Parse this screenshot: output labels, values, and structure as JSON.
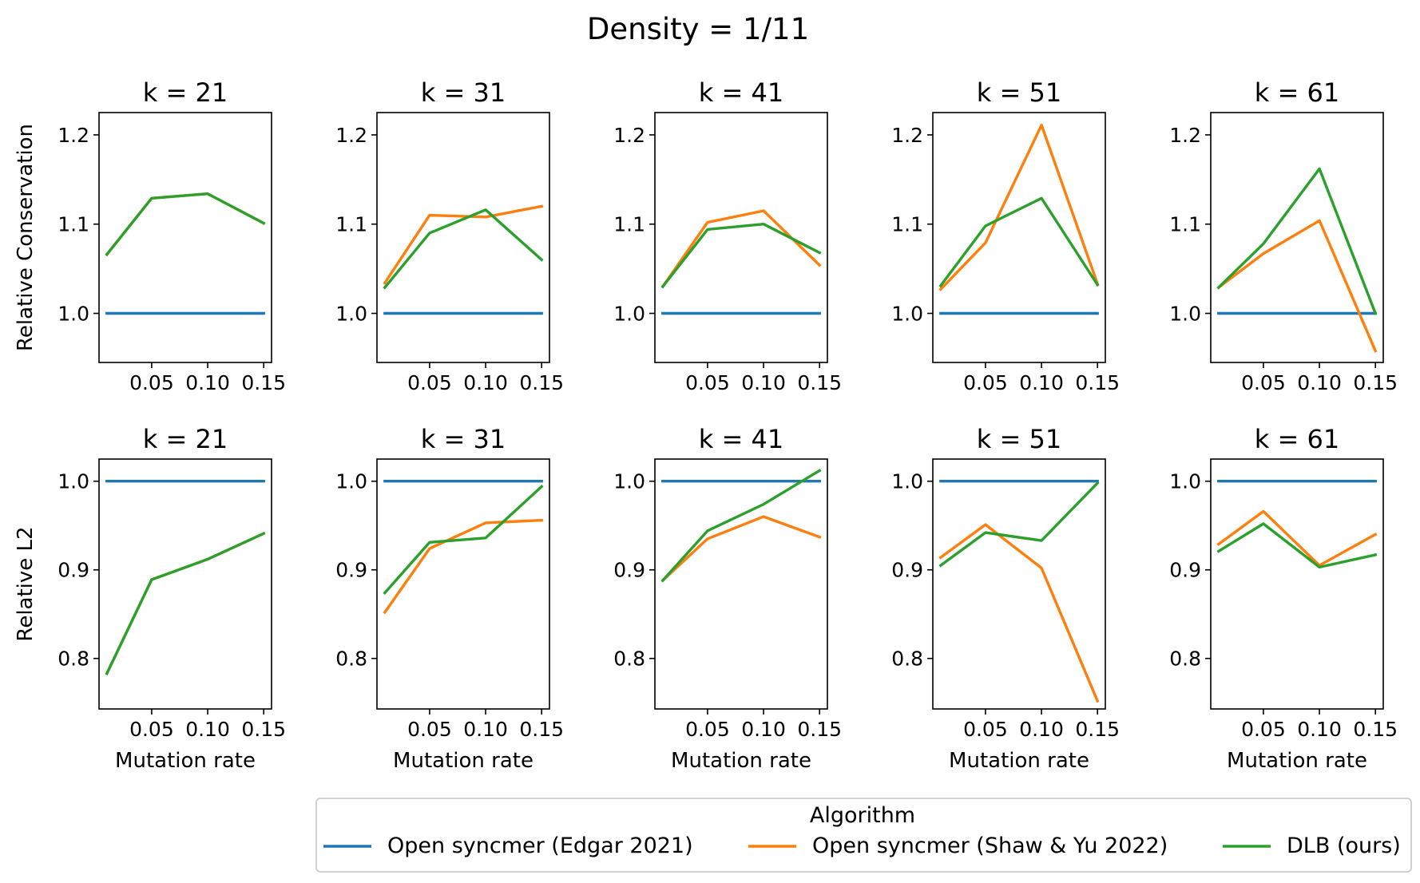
{
  "figure": {
    "title": "Density = 1/11",
    "legend_title": "Algorithm"
  },
  "series_styles": [
    {
      "name": "Open syncmer (Edgar 2021)",
      "color": "#1f77b4"
    },
    {
      "name": "Open syncmer (Shaw & Yu 2022)",
      "color": "#ff7f0e"
    },
    {
      "name": "DLB (ours)",
      "color": "#2ca02c"
    }
  ],
  "chart_data": [
    {
      "type": "line",
      "row": 0,
      "col": 0,
      "title": "k = 21",
      "ylabel": "Relative Conservation",
      "xlabel": "",
      "x": [
        0.01,
        0.05,
        0.1,
        0.15
      ],
      "xticks": [
        0.05,
        0.1,
        0.15
      ],
      "xticklabels": [
        "0.05",
        "0.10",
        "0.15"
      ],
      "ylim": [
        0.945,
        1.225
      ],
      "yticks": [
        1.0,
        1.1,
        1.2
      ],
      "yticklabels": [
        "1.0",
        "1.1",
        "1.2"
      ],
      "series": [
        {
          "name": "Open syncmer (Edgar 2021)",
          "values": [
            1.0,
            1.0,
            1.0,
            1.0
          ]
        },
        {
          "name": "Open syncmer (Shaw & Yu 2022)",
          "values": [
            1.066,
            1.129,
            1.134,
            1.101
          ]
        },
        {
          "name": "DLB (ours)",
          "values": [
            1.066,
            1.129,
            1.134,
            1.101
          ]
        }
      ]
    },
    {
      "type": "line",
      "row": 0,
      "col": 1,
      "title": "k = 31",
      "ylabel": "",
      "xlabel": "",
      "x": [
        0.01,
        0.05,
        0.1,
        0.15
      ],
      "xticks": [
        0.05,
        0.1,
        0.15
      ],
      "xticklabels": [
        "0.05",
        "0.10",
        "0.15"
      ],
      "ylim": [
        0.945,
        1.225
      ],
      "yticks": [
        1.0,
        1.1,
        1.2
      ],
      "yticklabels": [
        "1.0",
        "1.1",
        "1.2"
      ],
      "series": [
        {
          "name": "Open syncmer (Edgar 2021)",
          "values": [
            1.0,
            1.0,
            1.0,
            1.0
          ]
        },
        {
          "name": "Open syncmer (Shaw & Yu 2022)",
          "values": [
            1.034,
            1.11,
            1.108,
            1.12
          ]
        },
        {
          "name": "DLB (ours)",
          "values": [
            1.029,
            1.09,
            1.116,
            1.06
          ]
        }
      ]
    },
    {
      "type": "line",
      "row": 0,
      "col": 2,
      "title": "k = 41",
      "ylabel": "",
      "xlabel": "",
      "x": [
        0.01,
        0.05,
        0.1,
        0.15
      ],
      "xticks": [
        0.05,
        0.1,
        0.15
      ],
      "xticklabels": [
        "0.05",
        "0.10",
        "0.15"
      ],
      "ylim": [
        0.945,
        1.225
      ],
      "yticks": [
        1.0,
        1.1,
        1.2
      ],
      "yticklabels": [
        "1.0",
        "1.1",
        "1.2"
      ],
      "series": [
        {
          "name": "Open syncmer (Edgar 2021)",
          "values": [
            1.0,
            1.0,
            1.0,
            1.0
          ]
        },
        {
          "name": "Open syncmer (Shaw & Yu 2022)",
          "values": [
            1.03,
            1.102,
            1.115,
            1.054
          ]
        },
        {
          "name": "DLB (ours)",
          "values": [
            1.03,
            1.094,
            1.1,
            1.068
          ]
        }
      ]
    },
    {
      "type": "line",
      "row": 0,
      "col": 3,
      "title": "k = 51",
      "ylabel": "",
      "xlabel": "",
      "x": [
        0.01,
        0.05,
        0.1,
        0.15
      ],
      "xticks": [
        0.05,
        0.1,
        0.15
      ],
      "xticklabels": [
        "0.05",
        "0.10",
        "0.15"
      ],
      "ylim": [
        0.945,
        1.225
      ],
      "yticks": [
        1.0,
        1.1,
        1.2
      ],
      "yticklabels": [
        "1.0",
        "1.1",
        "1.2"
      ],
      "series": [
        {
          "name": "Open syncmer (Edgar 2021)",
          "values": [
            1.0,
            1.0,
            1.0,
            1.0
          ]
        },
        {
          "name": "Open syncmer (Shaw & Yu 2022)",
          "values": [
            1.027,
            1.079,
            1.211,
            1.033
          ]
        },
        {
          "name": "DLB (ours)",
          "values": [
            1.031,
            1.098,
            1.129,
            1.032
          ]
        }
      ]
    },
    {
      "type": "line",
      "row": 0,
      "col": 4,
      "title": "k = 61",
      "ylabel": "",
      "xlabel": "",
      "x": [
        0.01,
        0.05,
        0.1,
        0.15
      ],
      "xticks": [
        0.05,
        0.1,
        0.15
      ],
      "xticklabels": [
        "0.05",
        "0.10",
        "0.15"
      ],
      "ylim": [
        0.945,
        1.225
      ],
      "yticks": [
        1.0,
        1.1,
        1.2
      ],
      "yticklabels": [
        "1.0",
        "1.1",
        "1.2"
      ],
      "series": [
        {
          "name": "Open syncmer (Edgar 2021)",
          "values": [
            1.0,
            1.0,
            1.0,
            1.0
          ]
        },
        {
          "name": "Open syncmer (Shaw & Yu 2022)",
          "values": [
            1.029,
            1.067,
            1.104,
            0.958
          ]
        },
        {
          "name": "DLB (ours)",
          "values": [
            1.029,
            1.078,
            1.162,
            1.0
          ]
        }
      ]
    },
    {
      "type": "line",
      "row": 1,
      "col": 0,
      "title": "k = 21",
      "ylabel": "Relative L2",
      "xlabel": "Mutation rate",
      "x": [
        0.01,
        0.05,
        0.1,
        0.15
      ],
      "xticks": [
        0.05,
        0.1,
        0.15
      ],
      "xticklabels": [
        "0.05",
        "0.10",
        "0.15"
      ],
      "ylim": [
        0.743,
        1.025
      ],
      "yticks": [
        0.8,
        0.9,
        1.0
      ],
      "yticklabels": [
        "0.8",
        "0.9",
        "1.0"
      ],
      "series": [
        {
          "name": "Open syncmer (Edgar 2021)",
          "values": [
            1.0,
            1.0,
            1.0,
            1.0
          ]
        },
        {
          "name": "Open syncmer (Shaw & Yu 2022)",
          "values": [
            0.783,
            0.889,
            0.912,
            0.941
          ]
        },
        {
          "name": "DLB (ours)",
          "values": [
            0.783,
            0.889,
            0.912,
            0.941
          ]
        }
      ]
    },
    {
      "type": "line",
      "row": 1,
      "col": 1,
      "title": "k = 31",
      "ylabel": "",
      "xlabel": "Mutation rate",
      "x": [
        0.01,
        0.05,
        0.1,
        0.15
      ],
      "xticks": [
        0.05,
        0.1,
        0.15
      ],
      "xticklabels": [
        "0.05",
        "0.10",
        "0.15"
      ],
      "ylim": [
        0.743,
        1.025
      ],
      "yticks": [
        0.8,
        0.9,
        1.0
      ],
      "yticklabels": [
        "0.8",
        "0.9",
        "1.0"
      ],
      "series": [
        {
          "name": "Open syncmer (Edgar 2021)",
          "values": [
            1.0,
            1.0,
            1.0,
            1.0
          ]
        },
        {
          "name": "Open syncmer (Shaw & Yu 2022)",
          "values": [
            0.852,
            0.924,
            0.953,
            0.956
          ]
        },
        {
          "name": "DLB (ours)",
          "values": [
            0.874,
            0.931,
            0.936,
            0.994
          ]
        }
      ]
    },
    {
      "type": "line",
      "row": 1,
      "col": 2,
      "title": "k = 41",
      "ylabel": "",
      "xlabel": "Mutation rate",
      "x": [
        0.01,
        0.05,
        0.1,
        0.15
      ],
      "xticks": [
        0.05,
        0.1,
        0.15
      ],
      "xticklabels": [
        "0.05",
        "0.10",
        "0.15"
      ],
      "ylim": [
        0.743,
        1.025
      ],
      "yticks": [
        0.8,
        0.9,
        1.0
      ],
      "yticklabels": [
        "0.8",
        "0.9",
        "1.0"
      ],
      "series": [
        {
          "name": "Open syncmer (Edgar 2021)",
          "values": [
            1.0,
            1.0,
            1.0,
            1.0
          ]
        },
        {
          "name": "Open syncmer (Shaw & Yu 2022)",
          "values": [
            0.888,
            0.935,
            0.96,
            0.937
          ]
        },
        {
          "name": "DLB (ours)",
          "values": [
            0.888,
            0.944,
            0.974,
            1.012
          ]
        }
      ]
    },
    {
      "type": "line",
      "row": 1,
      "col": 3,
      "title": "k = 51",
      "ylabel": "",
      "xlabel": "Mutation rate",
      "x": [
        0.01,
        0.05,
        0.1,
        0.15
      ],
      "xticks": [
        0.05,
        0.1,
        0.15
      ],
      "xticklabels": [
        "0.05",
        "0.10",
        "0.15"
      ],
      "ylim": [
        0.743,
        1.025
      ],
      "yticks": [
        0.8,
        0.9,
        1.0
      ],
      "yticklabels": [
        "0.8",
        "0.9",
        "1.0"
      ],
      "series": [
        {
          "name": "Open syncmer (Edgar 2021)",
          "values": [
            1.0,
            1.0,
            1.0,
            1.0
          ]
        },
        {
          "name": "Open syncmer (Shaw & Yu 2022)",
          "values": [
            0.914,
            0.951,
            0.902,
            0.752
          ]
        },
        {
          "name": "DLB (ours)",
          "values": [
            0.905,
            0.942,
            0.933,
            0.998
          ]
        }
      ]
    },
    {
      "type": "line",
      "row": 1,
      "col": 4,
      "title": "k = 61",
      "ylabel": "",
      "xlabel": "Mutation rate",
      "x": [
        0.01,
        0.05,
        0.1,
        0.15
      ],
      "xticks": [
        0.05,
        0.1,
        0.15
      ],
      "xticklabels": [
        "0.05",
        "0.10",
        "0.15"
      ],
      "ylim": [
        0.743,
        1.025
      ],
      "yticks": [
        0.8,
        0.9,
        1.0
      ],
      "yticklabels": [
        "0.8",
        "0.9",
        "1.0"
      ],
      "series": [
        {
          "name": "Open syncmer (Edgar 2021)",
          "values": [
            1.0,
            1.0,
            1.0,
            1.0
          ]
        },
        {
          "name": "Open syncmer (Shaw & Yu 2022)",
          "values": [
            0.929,
            0.966,
            0.905,
            0.94
          ]
        },
        {
          "name": "DLB (ours)",
          "values": [
            0.921,
            0.952,
            0.903,
            0.917
          ]
        }
      ]
    }
  ]
}
